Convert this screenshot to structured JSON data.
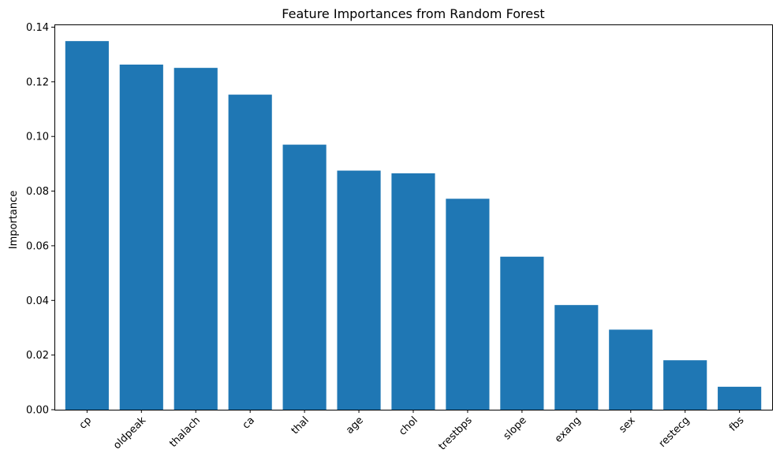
{
  "chart_data": {
    "type": "bar",
    "title": "Feature Importances from Random Forest",
    "xlabel": "",
    "ylabel": "Importance",
    "categories": [
      "cp",
      "oldpeak",
      "thalach",
      "ca",
      "thal",
      "age",
      "chol",
      "trestbps",
      "slope",
      "exang",
      "sex",
      "restecg",
      "fbs"
    ],
    "values": [
      0.1349,
      0.1263,
      0.1251,
      0.1153,
      0.097,
      0.0875,
      0.0865,
      0.0772,
      0.056,
      0.0383,
      0.0293,
      0.0181,
      0.0084
    ],
    "ylim": [
      0,
      0.141
    ],
    "yticks": [
      0.0,
      0.02,
      0.04,
      0.06,
      0.08,
      0.1,
      0.12,
      0.14
    ],
    "ytick_labels": [
      "0.00",
      "0.02",
      "0.04",
      "0.06",
      "0.08",
      "0.10",
      "0.12",
      "0.14"
    ],
    "bar_color": "#1f77b4",
    "grid": false
  }
}
